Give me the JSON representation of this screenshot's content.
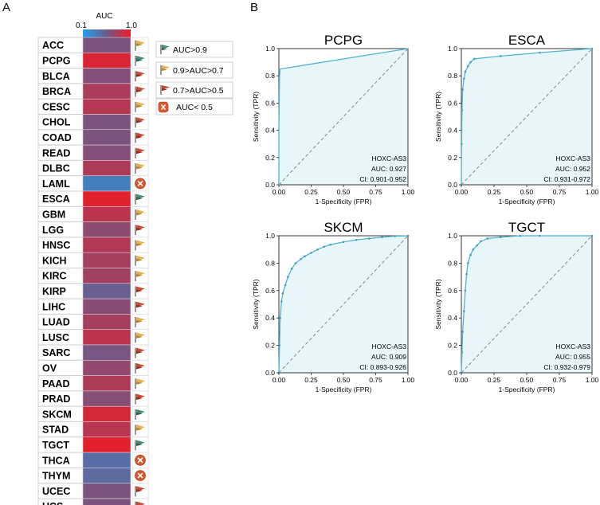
{
  "panels": {
    "a": "A",
    "b": "B"
  },
  "heatmap": {
    "colorbar_title": "AUC",
    "colorbar_min_label": "0.1",
    "colorbar_max_label": "1.0",
    "colorbar_min": 0.1,
    "colorbar_max": 1.0,
    "colors": {
      "low": "#1da1ee",
      "mid": "#6e5a8a",
      "high": "#ee1b24"
    }
  },
  "legend": {
    "items": [
      {
        "label": "AUC>0.9",
        "icon": "flag-icon",
        "color": "#4a8a74"
      },
      {
        "label": "0.9>AUC>0.7",
        "icon": "flag-icon",
        "color": "#e9b04a"
      },
      {
        "label": "0.7>AUC>0.5",
        "icon": "flag-icon",
        "color": "#cd4a32"
      },
      {
        "label": "AUC< 0.5",
        "icon": "cross-icon",
        "color": "#d9572d"
      }
    ]
  },
  "chart_data": [
    {
      "type": "heatmap",
      "title": "AUC",
      "value_range": [
        0.1,
        1.0
      ],
      "categories": [
        "ACC",
        "PCPG",
        "BLCA",
        "BRCA",
        "CESC",
        "CHOL",
        "COAD",
        "READ",
        "DLBC",
        "LAML",
        "ESCA",
        "GBM",
        "LGG",
        "HNSC",
        "KICH",
        "KIRC",
        "KIRP",
        "LIHC",
        "LUAD",
        "LUSC",
        "SARC",
        "OV",
        "PAAD",
        "PRAD",
        "SKCM",
        "STAD",
        "TGCT",
        "THCA",
        "THYM",
        "UCEC",
        "UCS"
      ],
      "values": [
        0.6,
        0.93,
        0.62,
        0.76,
        0.8,
        0.6,
        0.6,
        0.62,
        0.77,
        0.32,
        0.95,
        0.82,
        0.66,
        0.79,
        0.74,
        0.73,
        0.52,
        0.64,
        0.74,
        0.82,
        0.58,
        0.68,
        0.77,
        0.63,
        0.91,
        0.81,
        0.955,
        0.43,
        0.45,
        0.6,
        0.6
      ],
      "markers": [
        "mid",
        "high",
        "low",
        "low",
        "mid",
        "low",
        "low",
        "low",
        "mid",
        "fail",
        "high",
        "mid",
        "low",
        "mid",
        "mid",
        "mid",
        "low",
        "low",
        "mid",
        "mid",
        "low",
        "low",
        "mid",
        "low",
        "high",
        "mid",
        "high",
        "fail",
        "fail",
        "low",
        "low"
      ]
    },
    {
      "type": "line",
      "title": "PCPG",
      "xlabel": "1-Specificity (FPR)",
      "ylabel": "Sensitivity (TPR)",
      "xlim": [
        0,
        1
      ],
      "ylim": [
        0,
        1
      ],
      "xticks": [
        "0.00",
        "0.25",
        "0.50",
        "0.75",
        "1.00"
      ],
      "yticks": [
        "0.0",
        "0.2",
        "0.4",
        "0.6",
        "0.8",
        "1.0"
      ],
      "annotation": [
        "HOXC-AS3",
        "AUC: 0.927",
        "CI: 0.901-0.952"
      ],
      "x": [
        0,
        0,
        0.005,
        0.01,
        1.0
      ],
      "y": [
        0,
        0.4,
        0.8,
        0.85,
        1.0
      ]
    },
    {
      "type": "line",
      "title": "ESCA",
      "xlabel": "1-Specificity (FPR)",
      "ylabel": "Sensitivity (TPR)",
      "xlim": [
        0,
        1
      ],
      "ylim": [
        0,
        1
      ],
      "xticks": [
        "0.00",
        "0.25",
        "0.50",
        "0.75",
        "1.00"
      ],
      "yticks": [
        "0.0",
        "0.2",
        "0.4",
        "0.6",
        "0.8",
        "1.0"
      ],
      "annotation": [
        "HOXC-AS3",
        "AUC: 0.952",
        "CI: 0.931-0.972"
      ],
      "x": [
        0,
        0.002,
        0.005,
        0.01,
        0.02,
        0.03,
        0.05,
        0.07,
        0.1,
        0.3,
        0.6,
        1.0
      ],
      "y": [
        0,
        0.3,
        0.55,
        0.7,
        0.78,
        0.83,
        0.87,
        0.9,
        0.925,
        0.945,
        0.97,
        1.0
      ]
    },
    {
      "type": "line",
      "title": "SKCM",
      "xlabel": "1-Specificity (FPR)",
      "ylabel": "Sensitivity (TPR)",
      "xlim": [
        0,
        1
      ],
      "ylim": [
        0,
        1
      ],
      "xticks": [
        "0.00",
        "0.25",
        "0.50",
        "0.75",
        "1.00"
      ],
      "yticks": [
        "0.0",
        "0.2",
        "0.4",
        "0.6",
        "0.8",
        "1.0"
      ],
      "annotation": [
        "HOXC-AS3",
        "AUC: 0.909",
        "CI: 0.893-0.926"
      ],
      "x": [
        0,
        0.005,
        0.01,
        0.02,
        0.03,
        0.05,
        0.07,
        0.1,
        0.13,
        0.17,
        0.2,
        0.25,
        0.3,
        0.35,
        0.4,
        0.5,
        0.6,
        0.7,
        0.8,
        0.9,
        1.0
      ],
      "y": [
        0,
        0.2,
        0.4,
        0.52,
        0.58,
        0.64,
        0.7,
        0.76,
        0.8,
        0.83,
        0.85,
        0.875,
        0.9,
        0.92,
        0.935,
        0.955,
        0.97,
        0.98,
        0.99,
        0.997,
        1.0
      ]
    },
    {
      "type": "line",
      "title": "TGCT",
      "xlabel": "1-Specificity (FPR)",
      "ylabel": "Sensitivity (TPR)",
      "xlim": [
        0,
        1
      ],
      "ylim": [
        0,
        1
      ],
      "xticks": [
        "0.00",
        "0.25",
        "0.50",
        "0.75",
        "1.00"
      ],
      "yticks": [
        "0.0",
        "0.2",
        "0.4",
        "0.6",
        "0.8",
        "1.0"
      ],
      "annotation": [
        "HOXC-AS3",
        "AUC: 0.955",
        "CI: 0.932-0.979"
      ],
      "x": [
        0,
        0.005,
        0.01,
        0.02,
        0.03,
        0.04,
        0.05,
        0.07,
        0.09,
        0.12,
        0.15,
        0.2,
        0.3,
        0.45,
        0.6,
        1.0
      ],
      "y": [
        0,
        0.15,
        0.3,
        0.45,
        0.6,
        0.72,
        0.8,
        0.86,
        0.9,
        0.93,
        0.96,
        0.98,
        0.99,
        1.0,
        1.0,
        1.0
      ]
    }
  ]
}
